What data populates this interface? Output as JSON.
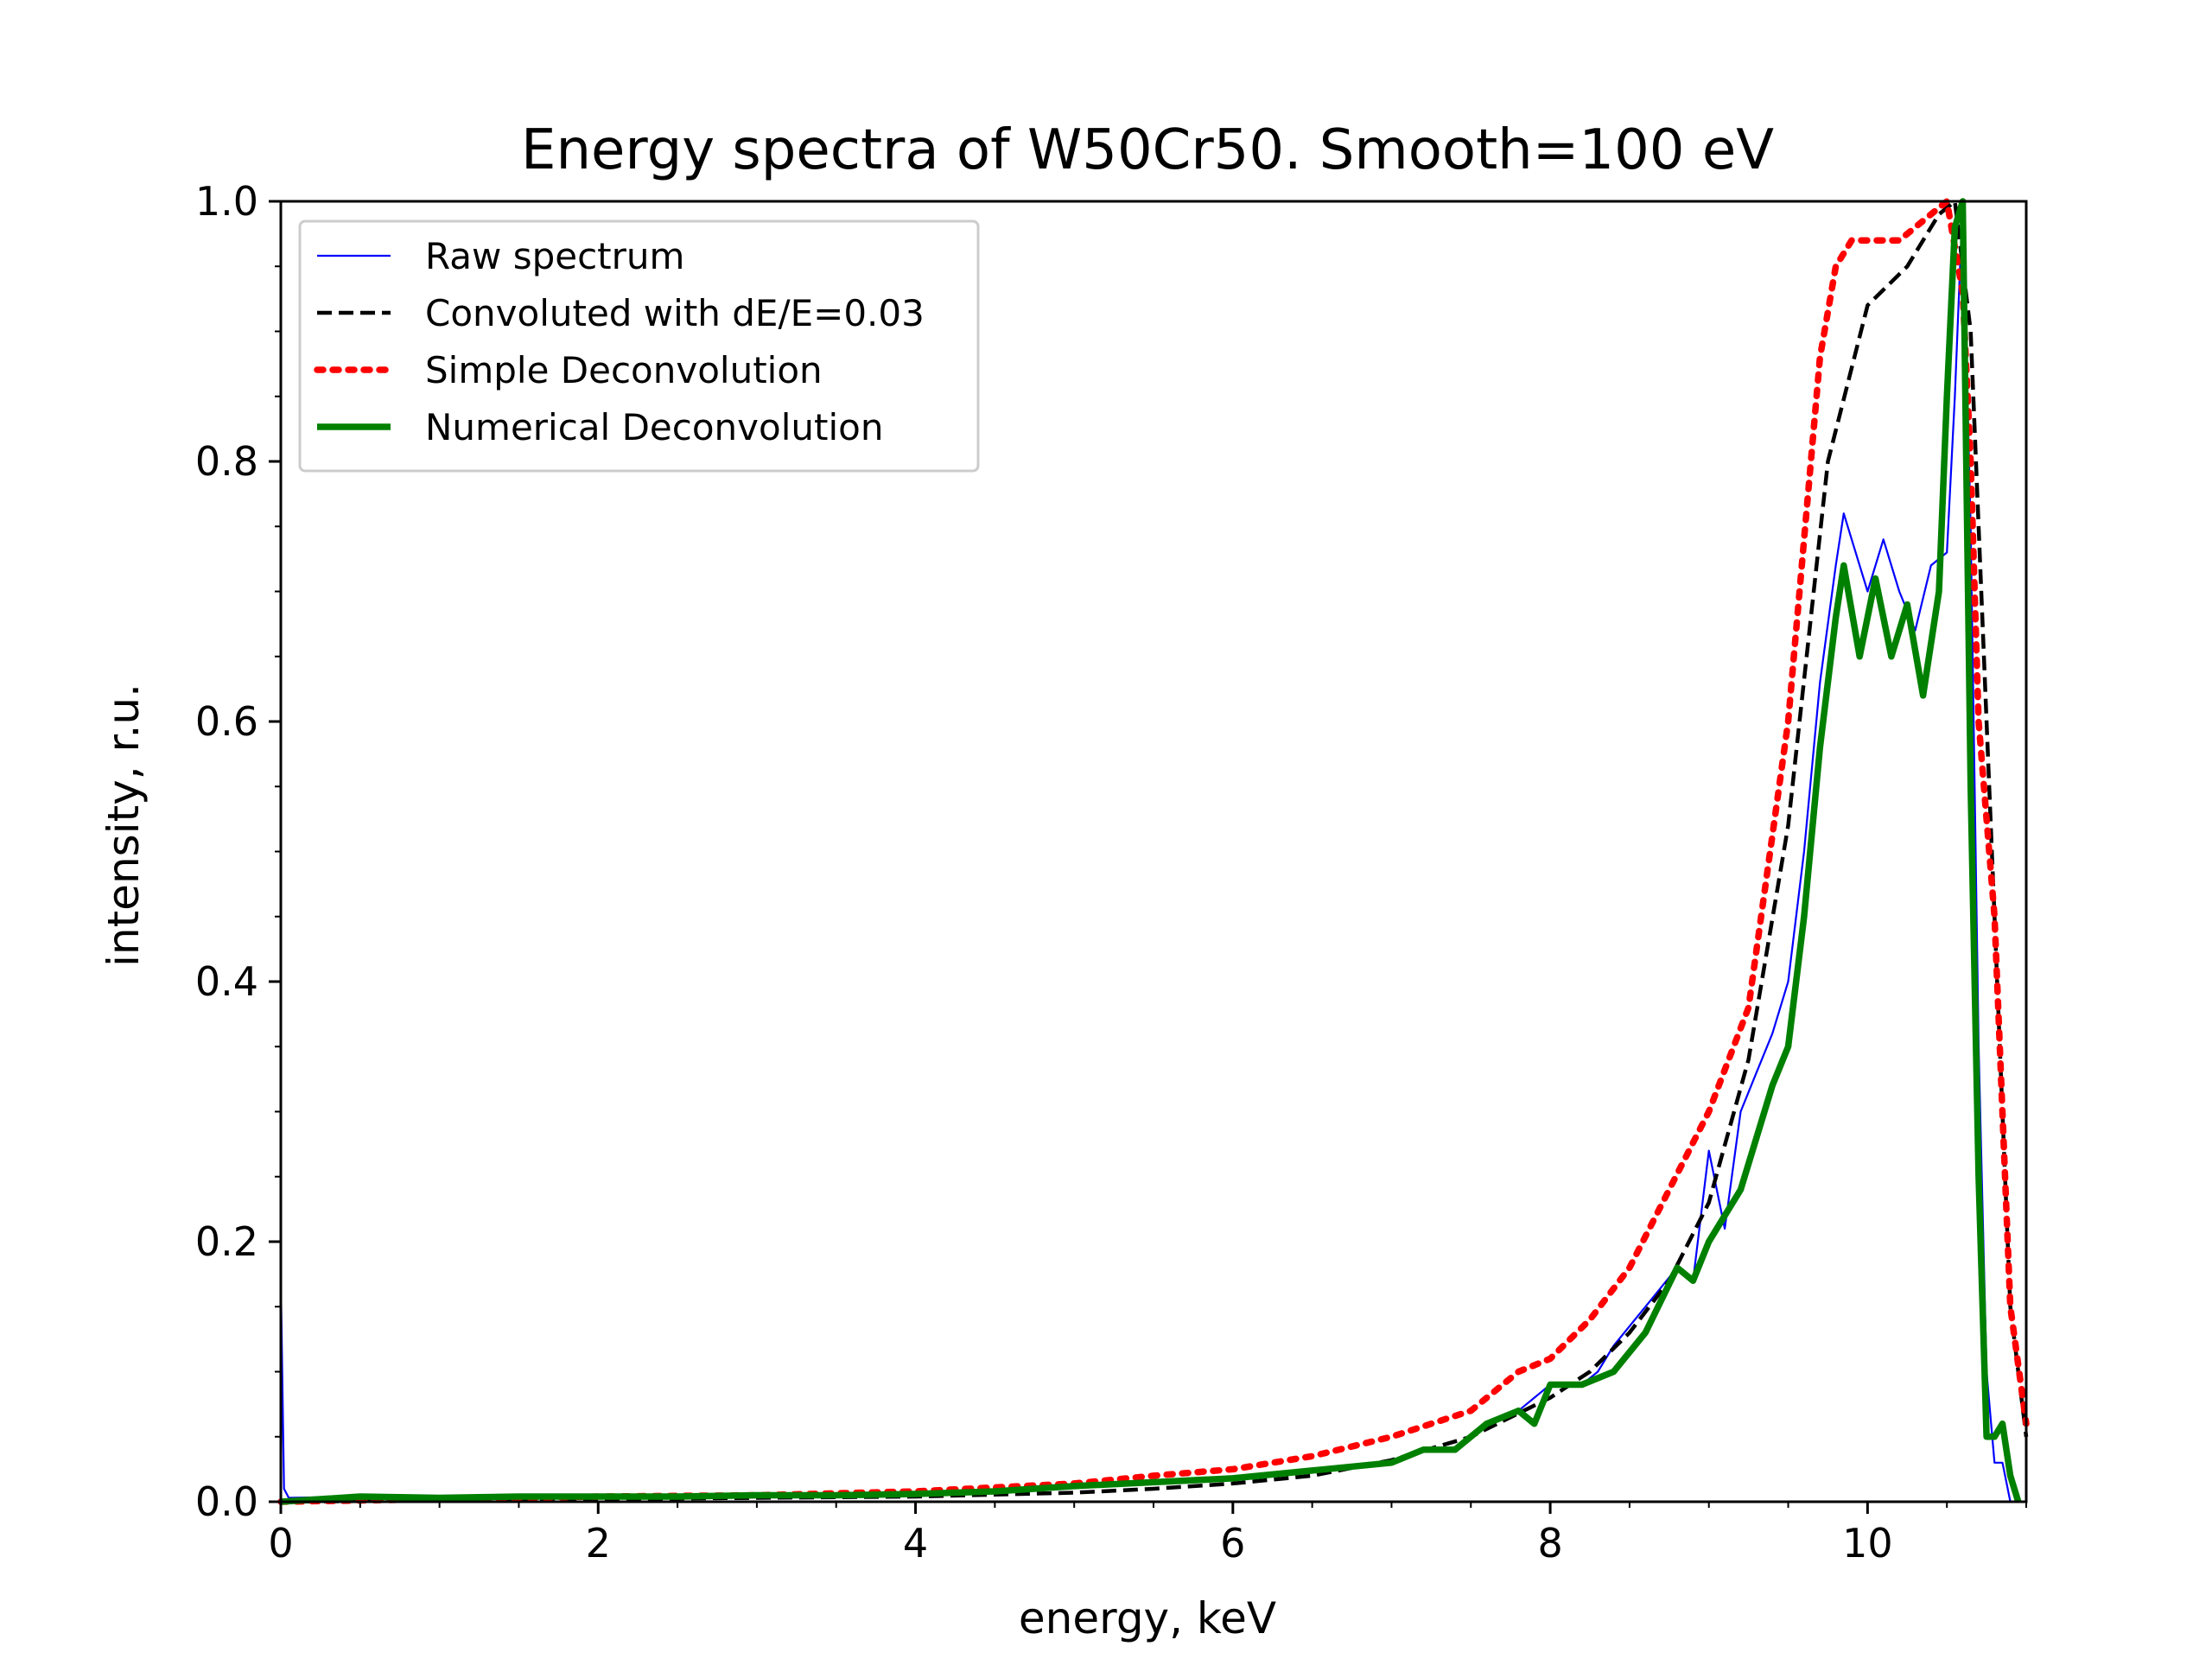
{
  "chart_data": {
    "type": "line",
    "title": "Energy spectra of W50Cr50. Smooth=100 eV",
    "xlabel": "energy, keV",
    "ylabel": "intensity, r.u.",
    "xlim": [
      0,
      11
    ],
    "ylim": [
      0,
      1.0
    ],
    "x_ticks": [
      0,
      2,
      4,
      6,
      8,
      10
    ],
    "y_ticks": [
      0.0,
      0.2,
      0.4,
      0.6,
      0.8,
      1.0
    ],
    "x_tick_labels": [
      "0",
      "2",
      "4",
      "6",
      "8",
      "10"
    ],
    "y_tick_labels": [
      "0.0",
      "0.2",
      "0.4",
      "0.6",
      "0.8",
      "1.0"
    ],
    "x_minor_step": 0.5,
    "y_minor_step": 0.05,
    "grid": false,
    "legend_position": "top-left",
    "series": [
      {
        "name": "Raw spectrum",
        "color": "#0000ff",
        "style": "solid-thin",
        "x": [
          0,
          0.02,
          0.05,
          0.5,
          1.0,
          1.5,
          2.0,
          2.5,
          3.0,
          3.5,
          4.0,
          4.5,
          5.0,
          5.5,
          6.0,
          6.5,
          7.0,
          7.2,
          7.4,
          7.6,
          7.7,
          7.8,
          8.0,
          8.2,
          8.3,
          8.4,
          8.6,
          8.8,
          8.9,
          9.0,
          9.1,
          9.2,
          9.3,
          9.4,
          9.5,
          9.6,
          9.7,
          9.8,
          9.85,
          9.9,
          10.0,
          10.1,
          10.2,
          10.3,
          10.4,
          10.5,
          10.55,
          10.6,
          10.65,
          10.7,
          10.75,
          10.8,
          10.85,
          10.9
        ],
        "y": [
          0.17,
          0.01,
          0.003,
          0.004,
          0.004,
          0.004,
          0.004,
          0.004,
          0.005,
          0.005,
          0.006,
          0.008,
          0.012,
          0.016,
          0.018,
          0.025,
          0.03,
          0.04,
          0.04,
          0.06,
          0.065,
          0.07,
          0.09,
          0.09,
          0.1,
          0.12,
          0.15,
          0.18,
          0.17,
          0.27,
          0.21,
          0.3,
          0.33,
          0.36,
          0.4,
          0.5,
          0.63,
          0.72,
          0.76,
          0.74,
          0.7,
          0.74,
          0.7,
          0.67,
          0.72,
          0.73,
          0.85,
          1.0,
          0.75,
          0.35,
          0.1,
          0.03,
          0.03,
          0.0
        ]
      },
      {
        "name": "Convoluted with dE/E=0.03",
        "color": "#000000",
        "style": "dashed",
        "x": [
          0,
          1,
          2,
          3,
          4,
          5,
          5.5,
          6.0,
          6.5,
          7.0,
          7.5,
          8.0,
          8.25,
          8.5,
          8.75,
          9.0,
          9.25,
          9.5,
          9.75,
          10.0,
          10.25,
          10.45,
          10.55,
          10.65,
          10.7,
          10.8,
          10.9,
          11.0
        ],
        "y": [
          0.0,
          0.001,
          0.002,
          0.003,
          0.004,
          0.007,
          0.01,
          0.014,
          0.02,
          0.032,
          0.05,
          0.08,
          0.1,
          0.13,
          0.17,
          0.23,
          0.34,
          0.52,
          0.8,
          0.92,
          0.95,
          0.99,
          1.0,
          0.9,
          0.75,
          0.45,
          0.15,
          0.05
        ]
      },
      {
        "name": "Simple Deconvolution",
        "color": "#ff0000",
        "style": "dotted",
        "x": [
          0,
          1,
          2,
          3,
          4,
          5,
          5.5,
          6.0,
          6.5,
          7.0,
          7.5,
          7.8,
          8.0,
          8.25,
          8.5,
          8.75,
          9.0,
          9.25,
          9.5,
          9.7,
          9.8,
          9.9,
          10.2,
          10.4,
          10.5,
          10.6,
          10.65,
          10.7,
          10.8,
          10.9,
          11.0
        ],
        "y": [
          0.0,
          0.002,
          0.004,
          0.005,
          0.008,
          0.014,
          0.02,
          0.025,
          0.035,
          0.05,
          0.07,
          0.1,
          0.11,
          0.14,
          0.18,
          0.24,
          0.3,
          0.38,
          0.6,
          0.88,
          0.95,
          0.97,
          0.97,
          0.99,
          1.0,
          0.93,
          0.8,
          0.6,
          0.45,
          0.15,
          0.06
        ]
      },
      {
        "name": "Numerical Deconvolution",
        "color": "#008000",
        "style": "solid-thick",
        "x": [
          0,
          0.5,
          1.0,
          1.5,
          2.0,
          2.5,
          3.0,
          3.5,
          4.0,
          4.5,
          5.0,
          5.5,
          6.0,
          6.5,
          7.0,
          7.2,
          7.4,
          7.6,
          7.8,
          7.9,
          8.0,
          8.2,
          8.4,
          8.6,
          8.8,
          8.9,
          9.0,
          9.2,
          9.4,
          9.5,
          9.6,
          9.7,
          9.8,
          9.85,
          9.95,
          10.05,
          10.15,
          10.25,
          10.35,
          10.45,
          10.5,
          10.55,
          10.6,
          10.65,
          10.7,
          10.75,
          10.8,
          10.85,
          10.9,
          10.95
        ],
        "y": [
          0.0,
          0.004,
          0.003,
          0.004,
          0.004,
          0.004,
          0.005,
          0.005,
          0.006,
          0.008,
          0.012,
          0.015,
          0.018,
          0.024,
          0.03,
          0.04,
          0.04,
          0.06,
          0.07,
          0.06,
          0.09,
          0.09,
          0.1,
          0.13,
          0.18,
          0.17,
          0.2,
          0.24,
          0.32,
          0.35,
          0.45,
          0.58,
          0.68,
          0.72,
          0.65,
          0.71,
          0.65,
          0.69,
          0.62,
          0.7,
          0.85,
          0.98,
          1.0,
          0.55,
          0.25,
          0.05,
          0.05,
          0.06,
          0.02,
          0.0
        ]
      }
    ]
  }
}
